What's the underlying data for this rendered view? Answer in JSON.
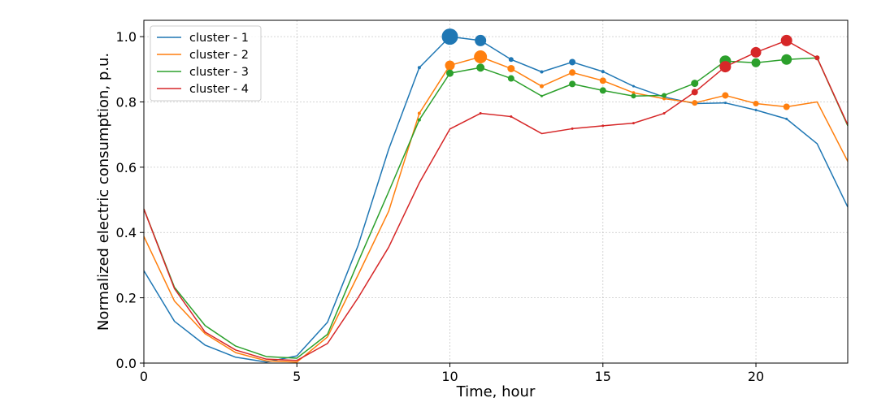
{
  "chart_data": {
    "type": "line",
    "xlabel": "Time, hour",
    "ylabel": "Normalized electric consumption, p.u.",
    "xlim": [
      0,
      23
    ],
    "ylim": [
      0,
      1.05
    ],
    "xticks": [
      0,
      5,
      10,
      15,
      20
    ],
    "yticks": [
      0.0,
      0.2,
      0.4,
      0.6,
      0.8,
      1.0
    ],
    "xtick_labels": [
      "0",
      "5",
      "10",
      "15",
      "20"
    ],
    "ytick_labels": [
      "0.0",
      "0.2",
      "0.4",
      "0.6",
      "0.8",
      "1.0"
    ],
    "grid": true,
    "legend_position": "top-left",
    "x": [
      0,
      1,
      2,
      3,
      4,
      5,
      6,
      7,
      8,
      9,
      10,
      11,
      12,
      13,
      14,
      15,
      16,
      17,
      18,
      19,
      20,
      21,
      22,
      23
    ],
    "series": [
      {
        "name": "cluster - 1",
        "color": "#1f77b4",
        "values": [
          0.283,
          0.128,
          0.055,
          0.018,
          0.003,
          0.022,
          0.125,
          0.36,
          0.655,
          0.905,
          1.0,
          0.988,
          0.93,
          0.892,
          0.922,
          0.893,
          0.848,
          0.815,
          0.795,
          0.797,
          0.775,
          0.748,
          0.672,
          0.478
        ],
        "markers": [
          {
            "x": 9,
            "size": 2
          },
          {
            "x": 10,
            "size": 10
          },
          {
            "x": 11,
            "size": 7
          },
          {
            "x": 12,
            "size": 3
          },
          {
            "x": 13,
            "size": 2
          },
          {
            "x": 14,
            "size": 4
          },
          {
            "x": 15,
            "size": 2
          },
          {
            "x": 16,
            "size": 1.5
          },
          {
            "x": 17,
            "size": 1.5
          },
          {
            "x": 18,
            "size": 1.5
          },
          {
            "x": 19,
            "size": 1.5
          },
          {
            "x": 20,
            "size": 1.5
          },
          {
            "x": 21,
            "size": 1.5
          }
        ]
      },
      {
        "name": "cluster - 2",
        "color": "#ff7f0e",
        "values": [
          0.388,
          0.19,
          0.09,
          0.032,
          0.007,
          0.003,
          0.08,
          0.27,
          0.465,
          0.765,
          0.912,
          0.938,
          0.902,
          0.848,
          0.89,
          0.865,
          0.828,
          0.81,
          0.797,
          0.82,
          0.795,
          0.785,
          0.8,
          0.618
        ],
        "markers": [
          {
            "x": 9,
            "size": 2
          },
          {
            "x": 10,
            "size": 6
          },
          {
            "x": 11,
            "size": 8
          },
          {
            "x": 12,
            "size": 4.5
          },
          {
            "x": 13,
            "size": 2.5
          },
          {
            "x": 14,
            "size": 4
          },
          {
            "x": 15,
            "size": 4
          },
          {
            "x": 16,
            "size": 2
          },
          {
            "x": 17,
            "size": 2
          },
          {
            "x": 18,
            "size": 3.5
          },
          {
            "x": 19,
            "size": 4
          },
          {
            "x": 20,
            "size": 3.5
          },
          {
            "x": 21,
            "size": 4
          }
        ]
      },
      {
        "name": "cluster - 3",
        "color": "#2ca02c",
        "values": [
          0.472,
          0.232,
          0.115,
          0.052,
          0.02,
          0.015,
          0.088,
          0.31,
          0.525,
          0.745,
          0.888,
          0.905,
          0.872,
          0.818,
          0.855,
          0.835,
          0.818,
          0.82,
          0.857,
          0.925,
          0.92,
          0.93,
          0.935,
          0.727
        ],
        "markers": [
          {
            "x": 9,
            "size": 2
          },
          {
            "x": 10,
            "size": 4.5
          },
          {
            "x": 11,
            "size": 5
          },
          {
            "x": 12,
            "size": 4
          },
          {
            "x": 13,
            "size": 1.5
          },
          {
            "x": 14,
            "size": 4
          },
          {
            "x": 15,
            "size": 4
          },
          {
            "x": 16,
            "size": 3
          },
          {
            "x": 17,
            "size": 3
          },
          {
            "x": 18,
            "size": 4.5
          },
          {
            "x": 19,
            "size": 7
          },
          {
            "x": 20,
            "size": 5.5
          },
          {
            "x": 21,
            "size": 6.5
          },
          {
            "x": 22,
            "size": 3
          }
        ]
      },
      {
        "name": "cluster - 4",
        "color": "#d62728",
        "values": [
          0.472,
          0.228,
          0.095,
          0.04,
          0.012,
          0.008,
          0.06,
          0.2,
          0.355,
          0.552,
          0.717,
          0.765,
          0.755,
          0.703,
          0.718,
          0.727,
          0.735,
          0.765,
          0.83,
          0.908,
          0.952,
          0.988,
          0.935,
          0.73
        ],
        "markers": [
          {
            "x": 11,
            "size": 1.5
          },
          {
            "x": 12,
            "size": 1.5
          },
          {
            "x": 14,
            "size": 1.5
          },
          {
            "x": 15,
            "size": 1.5
          },
          {
            "x": 16,
            "size": 1.5
          },
          {
            "x": 17,
            "size": 1.5
          },
          {
            "x": 18,
            "size": 4
          },
          {
            "x": 19,
            "size": 7
          },
          {
            "x": 20,
            "size": 6.5
          },
          {
            "x": 21,
            "size": 7
          },
          {
            "x": 22,
            "size": 3
          }
        ]
      }
    ]
  }
}
